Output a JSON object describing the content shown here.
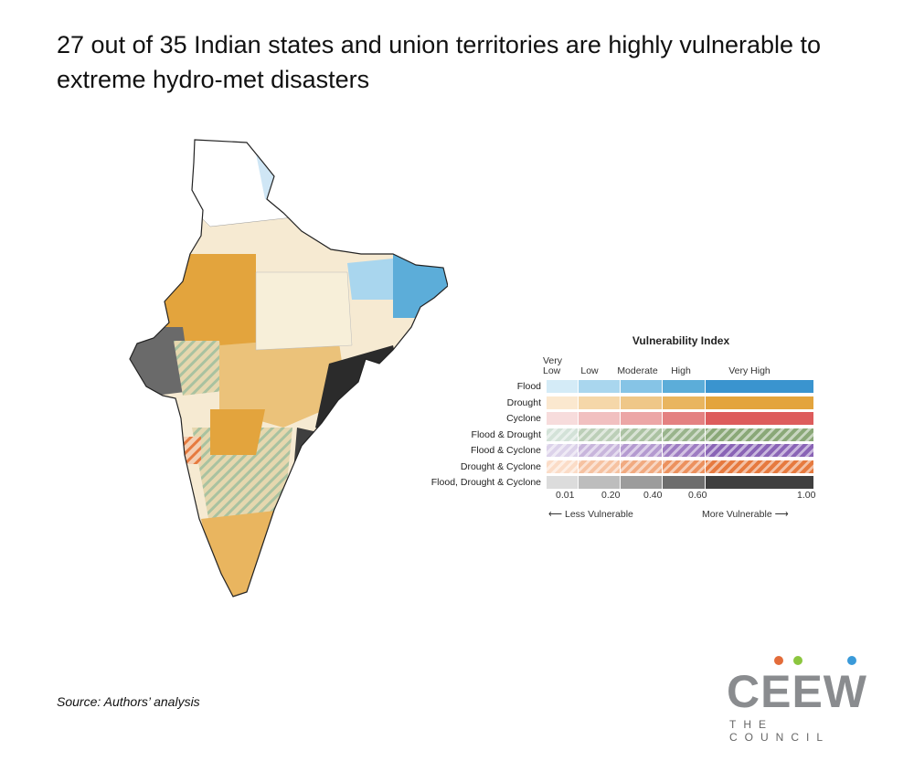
{
  "title": "27 out of 35 Indian states and union territories are highly vulnerable to extreme hydro-met disasters",
  "legend": {
    "title": "Vulnerability Index",
    "levels": [
      "Very Low",
      "Low",
      "Moderate",
      "High",
      "Very High"
    ],
    "rows": [
      {
        "label": "Flood",
        "pattern": "solid",
        "colors": [
          "#d4ebf7",
          "#a9d6ee",
          "#86c4e6",
          "#5cadd9",
          "#3a94cf"
        ]
      },
      {
        "label": "Drought",
        "pattern": "solid",
        "colors": [
          "#fbe8cf",
          "#f5d7a9",
          "#efc788",
          "#e9b55f",
          "#e3a43d"
        ]
      },
      {
        "label": "Cyclone",
        "pattern": "solid",
        "colors": [
          "#f7dcdc",
          "#f1c0c0",
          "#eca6a6",
          "#e48181",
          "#dd5c5c"
        ]
      },
      {
        "label": "Flood & Drought",
        "pattern": "hatch",
        "colors": [
          "#d3e2d8",
          "#bccfb8",
          "#abc2a2",
          "#99b48c",
          "#8aa878"
        ]
      },
      {
        "label": "Flood & Cyclone",
        "pattern": "hatch",
        "colors": [
          "#dcd2ea",
          "#c8b5dc",
          "#b49ad0",
          "#9e7cc2",
          "#8a64b6"
        ]
      },
      {
        "label": "Drought & Cyclone",
        "pattern": "hatch",
        "colors": [
          "#fbdcc7",
          "#f6c2a1",
          "#f1aa80",
          "#ec915e",
          "#e67a3f"
        ]
      },
      {
        "label": "Flood, Drought & Cyclone",
        "pattern": "solid",
        "colors": [
          "#dcdcdc",
          "#bdbdbd",
          "#9c9c9c",
          "#6e6e6e",
          "#3f3f3f"
        ]
      }
    ],
    "ticks": [
      "0.01",
      "0.20",
      "0.40",
      "0.60",
      "1.00"
    ],
    "less_label": "Less Vulnerable",
    "more_label": "More Vulnerable"
  },
  "source": "Source: Authors’ analysis",
  "logo": {
    "text": "CEEW",
    "subtitle": "THE COUNCIL",
    "dot_colors": [
      "#e36c3a",
      "#8cc63f",
      "#3a9ad9"
    ]
  }
}
